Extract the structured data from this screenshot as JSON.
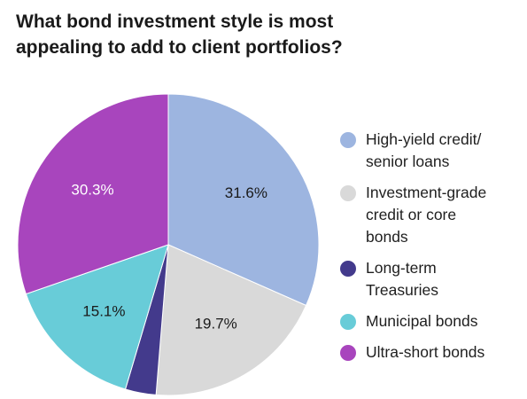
{
  "title_lines": [
    "What bond investment style is most",
    "appealing to add to client portfolios?"
  ],
  "chart_data": {
    "type": "pie",
    "title": "What bond investment style is most appealing to add to client portfolios?",
    "categories": [
      "High-yield credit/ senior loans",
      "Investment-grade credit or core bonds",
      "Long-term Treasuries",
      "Municipal bonds",
      "Ultra-short bonds"
    ],
    "values": [
      31.6,
      19.7,
      3.3,
      15.1,
      30.3
    ],
    "data_labels": [
      "31.6%",
      "19.7%",
      "",
      "15.1%",
      "30.3%"
    ],
    "colors": [
      "#9db5e0",
      "#d9d9d9",
      "#433a8c",
      "#68ccd8",
      "#a845bd"
    ],
    "label_colors": [
      "#1a1a1a",
      "#1a1a1a",
      "#ffffff",
      "#1a1a1a",
      "#ffffff"
    ],
    "start": "12 o'clock",
    "direction": "clockwise",
    "legend_position": "right"
  },
  "legend": {
    "items": [
      {
        "lines": [
          "High-yield credit/",
          "senior loans"
        ]
      },
      {
        "lines": [
          "Investment-grade",
          "credit or core",
          "bonds"
        ]
      },
      {
        "lines": [
          "Long-term",
          "Treasuries"
        ]
      },
      {
        "lines": [
          "Municipal bonds"
        ]
      },
      {
        "lines": [
          "Ultra-short bonds"
        ]
      }
    ]
  }
}
